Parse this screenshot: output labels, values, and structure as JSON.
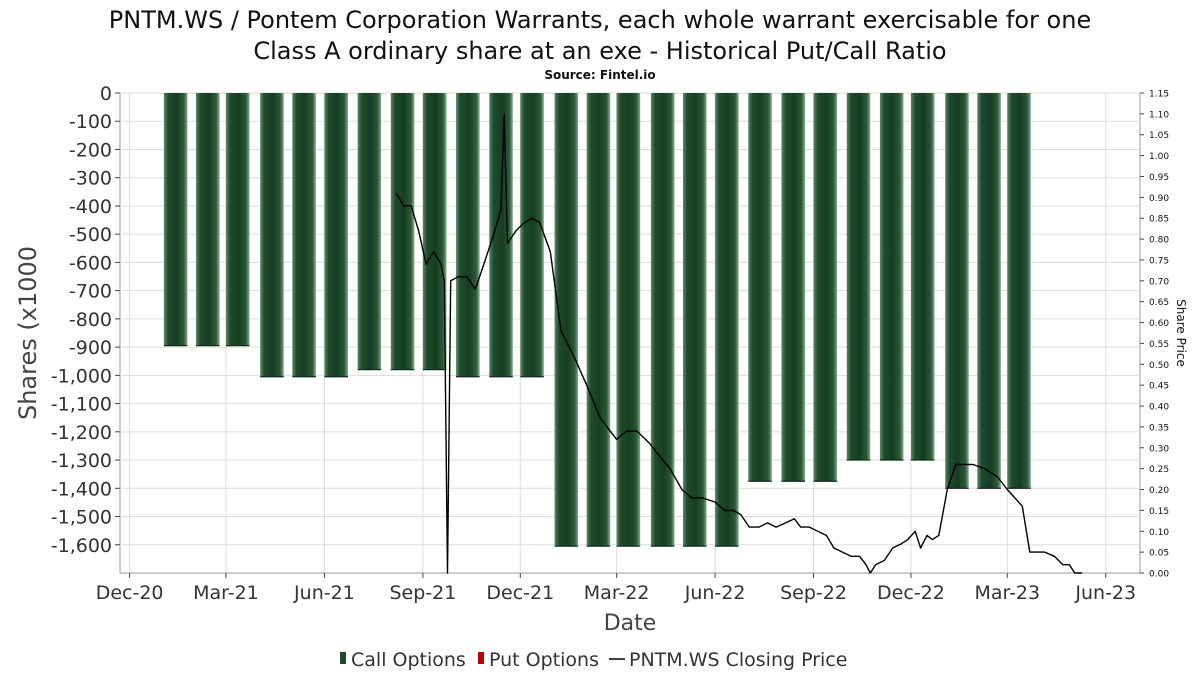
{
  "chart_data": {
    "type": "bar",
    "title_line1": "PNTM.WS / Pontem Corporation Warrants, each whole warrant exercisable for one",
    "title_line2": "Class A ordinary share at an exe - Historical Put/Call Ratio",
    "subtitle": "Source: Fintel.io",
    "xlabel": "Date",
    "ylabel": "Shares (x1000",
    "y2label": "Share Price",
    "ylim": [
      -1700,
      0
    ],
    "y2lim": [
      0,
      1.15
    ],
    "y_ticks": [
      0,
      -100,
      -200,
      -300,
      -400,
      -500,
      -600,
      -700,
      -800,
      -900,
      -1000,
      -1100,
      -1200,
      -1300,
      -1400,
      -1500,
      -1600
    ],
    "y_tick_labels": [
      "0",
      "-100",
      "-200",
      "-300",
      "-400",
      "-500",
      "-600",
      "-700",
      "-800",
      "-900",
      "-1,000",
      "-1,100",
      "-1,200",
      "-1,300",
      "-1,400",
      "-1,500",
      "-1,600"
    ],
    "y2_tick_labels": [
      "1.15",
      "1.10",
      "1.05",
      "1.00",
      "0.95",
      "0.90",
      "0.85",
      "0.80",
      "0.75",
      "0.70",
      "0.65",
      "0.60",
      "0.55",
      "0.50",
      "0.45",
      "0.40",
      "0.35",
      "0.30",
      "0.25",
      "0.20",
      "0.15",
      "0.10",
      "0.05",
      "0.00"
    ],
    "x_domain": [
      "2020-11-22",
      "2023-07-03"
    ],
    "x_ticks": [
      {
        "label": "Dec-20",
        "date": "2020-12-01"
      },
      {
        "label": "Mar-21",
        "date": "2021-03-01"
      },
      {
        "label": "Jun-21",
        "date": "2021-06-01"
      },
      {
        "label": "Sep-21",
        "date": "2021-09-01"
      },
      {
        "label": "Dec-21",
        "date": "2021-12-01"
      },
      {
        "label": "Mar-22",
        "date": "2022-03-01"
      },
      {
        "label": "Jun-22",
        "date": "2022-06-01"
      },
      {
        "label": "Sep-22",
        "date": "2022-09-01"
      },
      {
        "label": "Dec-22",
        "date": "2022-12-01"
      },
      {
        "label": "Mar-23",
        "date": "2023-03-01"
      },
      {
        "label": "Jun-23",
        "date": "2023-06-01"
      }
    ],
    "grid": true,
    "legend_position": "bottom-center",
    "legend": [
      {
        "label": "Call Options",
        "color": "#1e4d2b",
        "kind": "bar"
      },
      {
        "label": "Put Options",
        "color": "#c00000",
        "kind": "bar"
      },
      {
        "label": "PNTM.WS Closing Price",
        "color": "#000000",
        "kind": "line"
      }
    ],
    "colors": {
      "call": "#1e4d2b",
      "call_light": "#5a8a66",
      "put": "#c00000",
      "price": "#000000",
      "grid": "#dddddd",
      "axis": "#444444"
    },
    "bar_width_days": 22,
    "series": [
      {
        "name": "Call Options",
        "kind": "bar",
        "points": [
          {
            "x": "2021-01-13",
            "y": -895
          },
          {
            "x": "2021-02-12",
            "y": -895
          },
          {
            "x": "2021-03-12",
            "y": -895
          },
          {
            "x": "2021-04-13",
            "y": -1005
          },
          {
            "x": "2021-05-13",
            "y": -1005
          },
          {
            "x": "2021-06-12",
            "y": -1005
          },
          {
            "x": "2021-07-13",
            "y": -980
          },
          {
            "x": "2021-08-13",
            "y": -980
          },
          {
            "x": "2021-09-12",
            "y": -980
          },
          {
            "x": "2021-10-13",
            "y": -1005
          },
          {
            "x": "2021-11-13",
            "y": -1005
          },
          {
            "x": "2021-12-12",
            "y": -1005
          },
          {
            "x": "2022-01-13",
            "y": -1605
          },
          {
            "x": "2022-02-12",
            "y": -1605
          },
          {
            "x": "2022-03-12",
            "y": -1605
          },
          {
            "x": "2022-04-13",
            "y": -1605
          },
          {
            "x": "2022-05-13",
            "y": -1605
          },
          {
            "x": "2022-06-12",
            "y": -1605
          },
          {
            "x": "2022-07-13",
            "y": -1375
          },
          {
            "x": "2022-08-13",
            "y": -1375
          },
          {
            "x": "2022-09-12",
            "y": -1375
          },
          {
            "x": "2022-10-13",
            "y": -1300
          },
          {
            "x": "2022-11-13",
            "y": -1300
          },
          {
            "x": "2022-12-12",
            "y": -1300
          },
          {
            "x": "2023-01-13",
            "y": -1400
          },
          {
            "x": "2023-02-12",
            "y": -1400
          },
          {
            "x": "2023-03-12",
            "y": -1400
          }
        ]
      },
      {
        "name": "PNTM.WS Closing Price",
        "kind": "line",
        "axis": "right",
        "points": [
          {
            "x": "2021-08-07",
            "y": 0.91
          },
          {
            "x": "2021-08-14",
            "y": 0.88
          },
          {
            "x": "2021-08-21",
            "y": 0.88
          },
          {
            "x": "2021-08-28",
            "y": 0.82
          },
          {
            "x": "2021-09-04",
            "y": 0.74
          },
          {
            "x": "2021-09-11",
            "y": 0.77
          },
          {
            "x": "2021-09-18",
            "y": 0.74
          },
          {
            "x": "2021-09-21",
            "y": 0.7
          },
          {
            "x": "2021-09-24",
            "y": 0.0
          },
          {
            "x": "2021-09-27",
            "y": 0.7
          },
          {
            "x": "2021-10-04",
            "y": 0.71
          },
          {
            "x": "2021-10-12",
            "y": 0.71
          },
          {
            "x": "2021-10-20",
            "y": 0.68
          },
          {
            "x": "2021-10-28",
            "y": 0.74
          },
          {
            "x": "2021-11-06",
            "y": 0.81
          },
          {
            "x": "2021-11-13",
            "y": 0.87
          },
          {
            "x": "2021-11-16",
            "y": 1.1
          },
          {
            "x": "2021-11-19",
            "y": 0.79
          },
          {
            "x": "2021-11-27",
            "y": 0.82
          },
          {
            "x": "2021-12-05",
            "y": 0.84
          },
          {
            "x": "2021-12-12",
            "y": 0.85
          },
          {
            "x": "2021-12-19",
            "y": 0.84
          },
          {
            "x": "2021-12-29",
            "y": 0.77
          },
          {
            "x": "2022-01-08",
            "y": 0.58
          },
          {
            "x": "2022-01-20",
            "y": 0.52
          },
          {
            "x": "2022-02-01",
            "y": 0.45
          },
          {
            "x": "2022-02-14",
            "y": 0.37
          },
          {
            "x": "2022-03-01",
            "y": 0.32
          },
          {
            "x": "2022-03-10",
            "y": 0.34
          },
          {
            "x": "2022-03-20",
            "y": 0.34
          },
          {
            "x": "2022-04-01",
            "y": 0.31
          },
          {
            "x": "2022-04-10",
            "y": 0.28
          },
          {
            "x": "2022-04-20",
            "y": 0.25
          },
          {
            "x": "2022-05-01",
            "y": 0.2
          },
          {
            "x": "2022-05-10",
            "y": 0.18
          },
          {
            "x": "2022-05-20",
            "y": 0.18
          },
          {
            "x": "2022-06-01",
            "y": 0.17
          },
          {
            "x": "2022-06-10",
            "y": 0.15
          },
          {
            "x": "2022-06-18",
            "y": 0.15
          },
          {
            "x": "2022-06-25",
            "y": 0.14
          },
          {
            "x": "2022-07-03",
            "y": 0.11
          },
          {
            "x": "2022-07-12",
            "y": 0.11
          },
          {
            "x": "2022-07-20",
            "y": 0.12
          },
          {
            "x": "2022-07-28",
            "y": 0.11
          },
          {
            "x": "2022-08-06",
            "y": 0.12
          },
          {
            "x": "2022-08-14",
            "y": 0.13
          },
          {
            "x": "2022-08-20",
            "y": 0.11
          },
          {
            "x": "2022-08-28",
            "y": 0.11
          },
          {
            "x": "2022-09-05",
            "y": 0.1
          },
          {
            "x": "2022-09-13",
            "y": 0.09
          },
          {
            "x": "2022-09-20",
            "y": 0.06
          },
          {
            "x": "2022-09-28",
            "y": 0.05
          },
          {
            "x": "2022-10-06",
            "y": 0.04
          },
          {
            "x": "2022-10-14",
            "y": 0.04
          },
          {
            "x": "2022-10-20",
            "y": 0.02
          },
          {
            "x": "2022-10-24",
            "y": 0.0
          },
          {
            "x": "2022-10-29",
            "y": 0.02
          },
          {
            "x": "2022-11-06",
            "y": 0.03
          },
          {
            "x": "2022-11-14",
            "y": 0.06
          },
          {
            "x": "2022-11-22",
            "y": 0.07
          },
          {
            "x": "2022-11-28",
            "y": 0.08
          },
          {
            "x": "2022-12-05",
            "y": 0.1
          },
          {
            "x": "2022-12-10",
            "y": 0.06
          },
          {
            "x": "2022-12-16",
            "y": 0.09
          },
          {
            "x": "2022-12-21",
            "y": 0.08
          },
          {
            "x": "2022-12-27",
            "y": 0.09
          },
          {
            "x": "2023-01-04",
            "y": 0.2
          },
          {
            "x": "2023-01-12",
            "y": 0.26
          },
          {
            "x": "2023-01-20",
            "y": 0.26
          },
          {
            "x": "2023-01-28",
            "y": 0.26
          },
          {
            "x": "2023-02-08",
            "y": 0.25
          },
          {
            "x": "2023-02-20",
            "y": 0.23
          },
          {
            "x": "2023-03-01",
            "y": 0.2
          },
          {
            "x": "2023-03-08",
            "y": 0.18
          },
          {
            "x": "2023-03-15",
            "y": 0.16
          },
          {
            "x": "2023-03-22",
            "y": 0.05
          },
          {
            "x": "2023-03-29",
            "y": 0.05
          },
          {
            "x": "2023-04-05",
            "y": 0.05
          },
          {
            "x": "2023-04-14",
            "y": 0.04
          },
          {
            "x": "2023-04-22",
            "y": 0.02
          },
          {
            "x": "2023-04-28",
            "y": 0.02
          },
          {
            "x": "2023-05-03",
            "y": 0.0
          },
          {
            "x": "2023-05-10",
            "y": 0.0
          }
        ]
      }
    ]
  }
}
